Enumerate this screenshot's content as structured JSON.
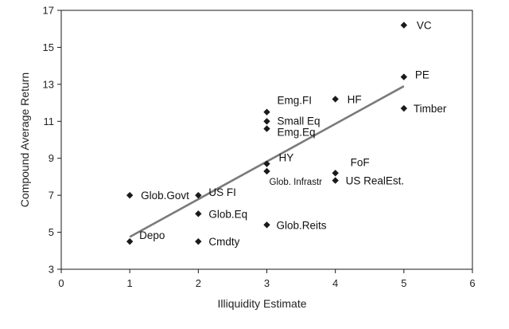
{
  "chart_data": {
    "type": "scatter",
    "title": "",
    "xlabel": "Illiquidity Estimate",
    "ylabel": "Compound Average Return",
    "xlim": [
      0,
      6
    ],
    "ylim": [
      3,
      17
    ],
    "xticks": [
      0,
      1,
      2,
      3,
      4,
      5,
      6
    ],
    "yticks": [
      3,
      5,
      7,
      9,
      11,
      13,
      15,
      17
    ],
    "grid": "none",
    "legend": "none",
    "marker_color": "#1a1a1a",
    "trendline_color": "#7a7a7a",
    "points": [
      {
        "label": "VC",
        "x": 5,
        "y": 16.2
      },
      {
        "label": "PE",
        "x": 5,
        "y": 13.4
      },
      {
        "label": "Timber",
        "x": 5,
        "y": 11.7
      },
      {
        "label": "Emg.FI",
        "x": 3,
        "y": 11.5
      },
      {
        "label": "HF",
        "x": 4,
        "y": 12.2
      },
      {
        "label": "Small Eq",
        "x": 3,
        "y": 11.0
      },
      {
        "label": "Emg.Eq",
        "x": 3,
        "y": 10.6
      },
      {
        "label": "HY",
        "x": 3,
        "y": 8.7
      },
      {
        "label": "Glob. Infrastr",
        "x": 3,
        "y": 8.3
      },
      {
        "label": "FoF",
        "x": 4,
        "y": 8.2
      },
      {
        "label": "US RealEst.",
        "x": 4,
        "y": 7.8
      },
      {
        "label": "Glob.Govt",
        "x": 1,
        "y": 7.0
      },
      {
        "label": "US FI",
        "x": 2,
        "y": 7.0
      },
      {
        "label": "Glob.Eq",
        "x": 2,
        "y": 6.0
      },
      {
        "label": "Glob.Reits",
        "x": 3,
        "y": 5.4
      },
      {
        "label": "Depo",
        "x": 1,
        "y": 4.5
      },
      {
        "label": "Cmdty",
        "x": 2,
        "y": 4.5
      }
    ],
    "trendline": {
      "x": [
        1,
        5
      ],
      "y": [
        4.75,
        12.9
      ]
    }
  }
}
